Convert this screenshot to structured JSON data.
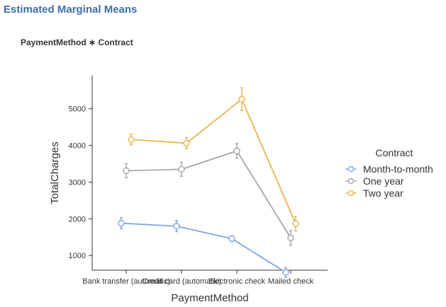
{
  "heading": "Estimated Marginal Means",
  "subheading": "PaymentMethod ∗ Contract",
  "chart_data": {
    "type": "line",
    "xlabel": "PaymentMethod",
    "ylabel": "TotalCharges",
    "categories": [
      "Bank transfer (automatic)",
      "Credit card (automatic)",
      "Electronic check",
      "Mailed check"
    ],
    "ylim": [
      600,
      5900
    ],
    "yticks": [
      1000,
      2000,
      3000,
      4000,
      5000
    ],
    "grid": false,
    "legend": {
      "title": "Contract",
      "position": "right"
    },
    "series": [
      {
        "name": "Month-to-month",
        "color": "#7ea6e0",
        "values": [
          1880,
          1800,
          1460,
          540
        ],
        "err": [
          150,
          150,
          80,
          130
        ]
      },
      {
        "name": "One year",
        "color": "#a6a6a6",
        "values": [
          3310,
          3350,
          3850,
          1480
        ],
        "err": [
          190,
          190,
          200,
          200
        ]
      },
      {
        "name": "Two year",
        "color": "#e8b44f",
        "values": [
          4160,
          4060,
          5260,
          1870
        ],
        "err": [
          150,
          150,
          310,
          200
        ]
      }
    ]
  }
}
